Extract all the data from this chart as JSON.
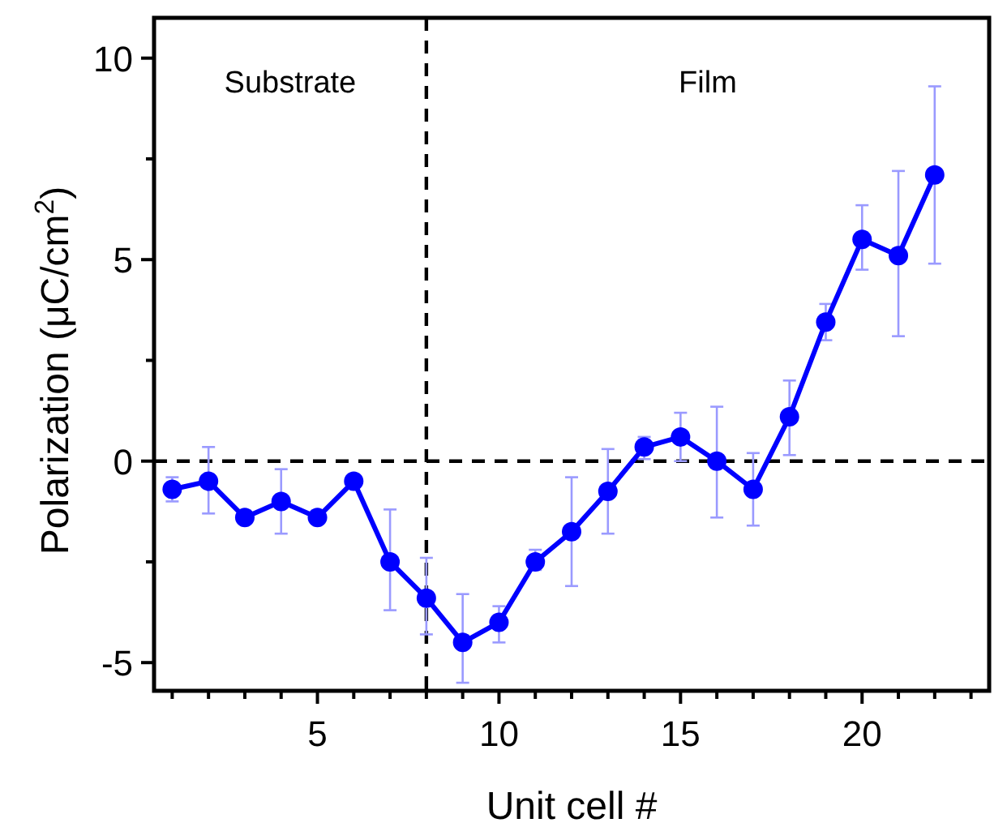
{
  "chart_data": {
    "type": "line",
    "xlabel": "Unit cell #",
    "ylabel": "Polarization (μC/cm$^{2}$)",
    "x": [
      1,
      2,
      3,
      4,
      5,
      6,
      7,
      8,
      9,
      10,
      11,
      12,
      13,
      14,
      15,
      16,
      17,
      18,
      19,
      20,
      21,
      22
    ],
    "series": [
      {
        "color": "#0000ff",
        "values": [
          -0.7,
          -0.5,
          -1.4,
          -1.0,
          -1.4,
          -0.5,
          -2.5,
          -3.4,
          -4.5,
          -4.0,
          -2.5,
          -1.75,
          -0.75,
          0.35,
          0.6,
          0.0,
          -0.7,
          1.1,
          3.45,
          5.5,
          5.1,
          7.1
        ],
        "errors": [
          [
            -1.0,
            -0.4
          ],
          [
            -1.3,
            0.35
          ],
          null,
          [
            -1.8,
            -0.2
          ],
          null,
          null,
          [
            -3.7,
            -1.2
          ],
          [
            -4.3,
            -2.4
          ],
          [
            -5.5,
            -3.3
          ],
          [
            -4.5,
            -3.6
          ],
          [
            -2.7,
            -2.2
          ],
          [
            -3.1,
            -0.4
          ],
          [
            -1.8,
            0.3
          ],
          [
            0.05,
            0.6
          ],
          [
            0.0,
            1.2
          ],
          [
            -1.4,
            1.35
          ],
          [
            -1.6,
            0.2
          ],
          [
            0.15,
            2.0
          ],
          [
            3.0,
            3.9
          ],
          [
            4.75,
            6.35
          ],
          [
            3.1,
            7.2
          ],
          [
            4.9,
            9.3
          ]
        ]
      }
    ],
    "xlim": [
      0.5,
      23.5
    ],
    "xticks": [
      {
        "value": 1,
        "label": null
      },
      {
        "value": 2,
        "label": null
      },
      {
        "value": 3,
        "label": null
      },
      {
        "value": 4,
        "label": null
      },
      5,
      {
        "value": 6,
        "label": null
      },
      {
        "value": 7,
        "label": null
      },
      {
        "value": 8,
        "label": null
      },
      {
        "value": 9,
        "label": null
      },
      10,
      {
        "value": 11,
        "label": null
      },
      {
        "value": 12,
        "label": null
      },
      {
        "value": 13,
        "label": null
      },
      {
        "value": 14,
        "label": null
      },
      15,
      {
        "value": 16,
        "label": null
      },
      {
        "value": 17,
        "label": null
      },
      {
        "value": 18,
        "label": null
      },
      {
        "value": 19,
        "label": null
      },
      20,
      {
        "value": 21,
        "label": null
      },
      {
        "value": 22,
        "label": null
      },
      {
        "value": 23,
        "label": null
      }
    ],
    "ylim": [
      -5.7,
      11
    ],
    "yticks": [
      -5,
      {
        "value": -2.5,
        "label": null
      },
      0,
      {
        "value": 2.5,
        "label": null
      },
      5,
      {
        "value": 7.5,
        "label": null
      },
      10
    ],
    "ref_lines": [
      {
        "axis": "y",
        "value": 0,
        "color": "#000000",
        "line_style": "dashed"
      },
      {
        "axis": "x",
        "value": 8,
        "color": "#000000",
        "line_style": "dashed"
      }
    ],
    "annotations": [
      "Substrate",
      "Film"
    ],
    "marker": "circle",
    "line_style": "solid",
    "grid": false
  }
}
